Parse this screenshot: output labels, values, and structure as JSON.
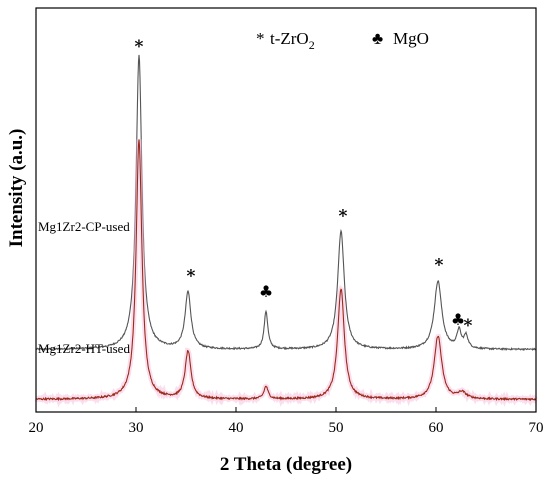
{
  "chart_data": {
    "type": "line",
    "xlabel": "2 Theta (degree)",
    "ylabel": "Intensity (a.u.)",
    "xlim": [
      20,
      70
    ],
    "xticks": [
      "20",
      "30",
      "40",
      "50",
      "60",
      "70"
    ],
    "y_tick_labels": false,
    "grid": false,
    "legend": {
      "placement": "top-center",
      "entries": [
        {
          "symbol": "*",
          "label": "t-ZrO",
          "subscript": "2"
        },
        {
          "symbol": "♣",
          "label": "MgO"
        }
      ]
    },
    "series": [
      {
        "name": "Mg1Zr2-CP-used",
        "color": "#555555",
        "baseline": 0.79,
        "noise": 0.012,
        "peaks": [
          {
            "x": 30.3,
            "height": 4.65,
            "width": 0.35
          },
          {
            "x": 35.2,
            "height": 0.9,
            "width": 0.35
          },
          {
            "x": 43.0,
            "height": 0.6,
            "width": 0.22
          },
          {
            "x": 50.5,
            "height": 1.87,
            "width": 0.4
          },
          {
            "x": 60.2,
            "height": 1.08,
            "width": 0.45
          },
          {
            "x": 62.3,
            "height": 0.28,
            "width": 0.25
          },
          {
            "x": 63.0,
            "height": 0.2,
            "width": 0.25
          }
        ]
      },
      {
        "name": "Mg1Zr2-HT-used",
        "color": "#9b2a1b",
        "baseline": 0.0,
        "noise": 0.014,
        "peaks": [
          {
            "x": 30.3,
            "height": 4.1,
            "width": 0.35
          },
          {
            "x": 35.2,
            "height": 0.75,
            "width": 0.35
          },
          {
            "x": 43.0,
            "height": 0.2,
            "width": 0.25
          },
          {
            "x": 50.5,
            "height": 1.75,
            "width": 0.4
          },
          {
            "x": 60.2,
            "height": 1.0,
            "width": 0.45
          },
          {
            "x": 62.6,
            "height": 0.1,
            "width": 0.5
          }
        ]
      }
    ],
    "peak_markers": [
      {
        "symbol": "*",
        "x": 30.3,
        "y": 5.5
      },
      {
        "symbol": "*",
        "x": 35.5,
        "y": 1.87
      },
      {
        "symbol": "♣",
        "x": 43.0,
        "y": 1.62
      },
      {
        "symbol": "*",
        "x": 50.7,
        "y": 2.82
      },
      {
        "symbol": "*",
        "x": 60.3,
        "y": 2.04
      },
      {
        "symbol": "♣",
        "x": 62.2,
        "y": 1.18
      },
      {
        "symbol": "*",
        "x": 63.2,
        "y": 1.08
      }
    ]
  }
}
